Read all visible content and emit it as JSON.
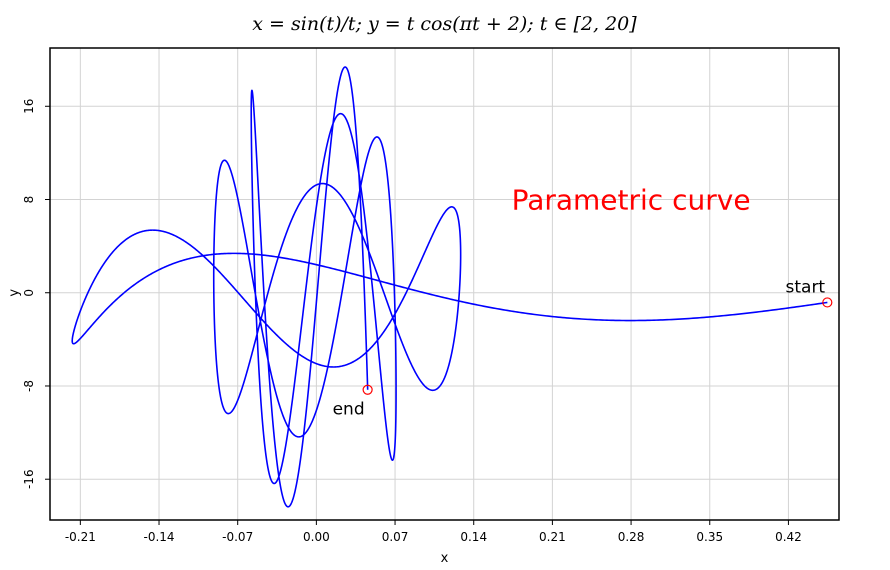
{
  "chart_data": {
    "type": "line",
    "title": "x = sin(t)/t;  y = t cos(πt + 2);  t ∈ [2, 20]",
    "xlabel": "x",
    "ylabel": "y",
    "xlim": [
      -0.237,
      0.465
    ],
    "ylim": [
      -19.5,
      21.0
    ],
    "x_ticks": [
      -0.21,
      -0.14,
      -0.07,
      0.0,
      0.07,
      0.14,
      0.21,
      0.28,
      0.35,
      0.42
    ],
    "x_tick_labels": [
      "-0.21",
      "-0.14",
      "-0.07",
      "0.00",
      "0.07",
      "0.14",
      "0.21",
      "0.28",
      "0.35",
      "0.42"
    ],
    "y_ticks": [
      -16,
      -8,
      0,
      8,
      16
    ],
    "y_tick_labels": [
      "-16",
      "-8",
      "0",
      "8",
      "16"
    ],
    "grid": true,
    "series": [
      {
        "function": {
          "x": "sin(t)/t",
          "y": "t*cos(pi*t+2)",
          "t_range": [
            2,
            20
          ]
        },
        "color": "#0000ff"
      }
    ],
    "markers": [
      {
        "label": "start",
        "t": 2,
        "x": 0.4546,
        "y": -0.8323,
        "color": "#ff0000"
      },
      {
        "label": "end",
        "t": 20,
        "x": 0.0456,
        "y": -8.323,
        "color": "#ff0000"
      }
    ],
    "annotations": [
      {
        "text": "Parametric curve",
        "x": 0.28,
        "y": 8.0,
        "color": "#ff0000"
      }
    ]
  }
}
